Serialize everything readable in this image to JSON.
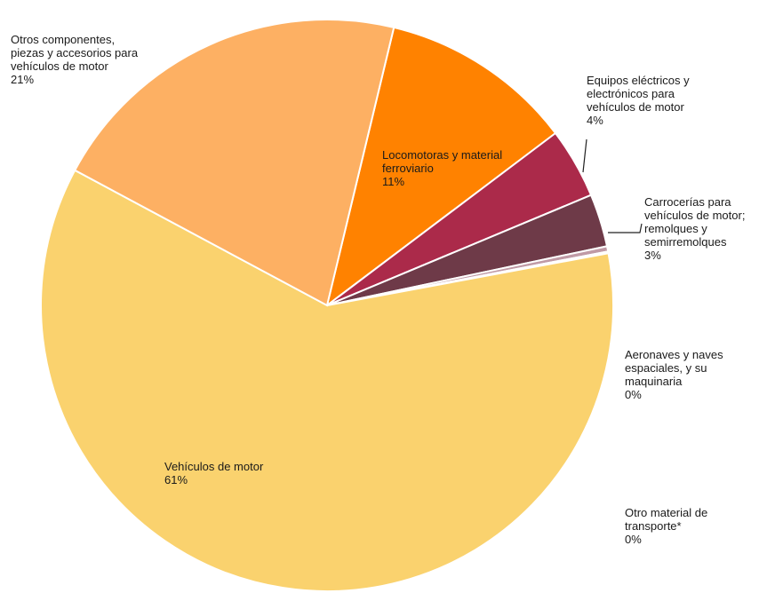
{
  "chart_data": {
    "type": "pie",
    "slices": [
      {
        "label": "Vehículos de motor",
        "percent_label": "61%",
        "value": 61,
        "color": "#FAD26E"
      },
      {
        "label": "Otros componentes,\npiezas y accesorios para\nvehículos de motor",
        "percent_label": "21%",
        "value": 21,
        "color": "#FDB063"
      },
      {
        "label": "Locomotoras y material\nferroviario",
        "percent_label": "11%",
        "value": 11,
        "color": "#FF8200"
      },
      {
        "label": "Equipos eléctricos y\nelectrónicos para\nvehículos de motor",
        "percent_label": "4%",
        "value": 4,
        "color": "#AB2A4A"
      },
      {
        "label": "Carrocerías para\nvehículos de motor;\nremolques y\nsemirremolques",
        "percent_label": "3%",
        "value": 3,
        "color": "#6E3A48"
      },
      {
        "label": "Aeronaves y naves\nespaciales, y su\nmaquinaria",
        "percent_label": "0%",
        "value": 0.3,
        "color": "#C09AA6"
      },
      {
        "label": "Otro material de\ntransporte*",
        "percent_label": "0%",
        "value": 0.1,
        "color": "#E8D2B0"
      }
    ]
  }
}
